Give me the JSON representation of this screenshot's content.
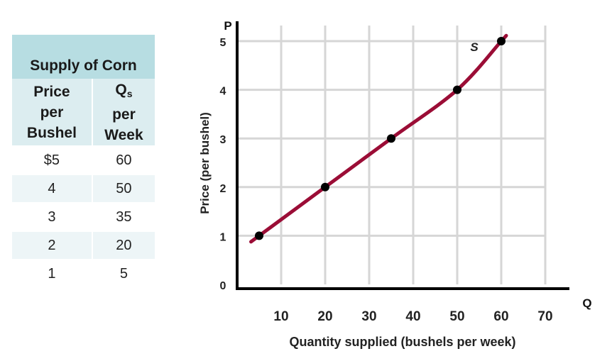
{
  "table": {
    "title": "Supply of Corn",
    "col1_header": [
      "Price",
      "per",
      "Bushel"
    ],
    "col2_header_main": "Q",
    "col2_header_sub": "s",
    "col2_header_rest": [
      "per",
      "Week"
    ],
    "rows": [
      {
        "price": "$5",
        "qty": "60"
      },
      {
        "price": "4",
        "qty": "50"
      },
      {
        "price": "3",
        "qty": "35"
      },
      {
        "price": "2",
        "qty": "20"
      },
      {
        "price": "1",
        "qty": "5"
      }
    ]
  },
  "chart_data": {
    "type": "line",
    "title": "",
    "xlabel": "Quantity supplied (bushels per week)",
    "ylabel": "Price (per bushel)",
    "x_axis_letter": "Q",
    "y_axis_letter": "P",
    "xlim": [
      0,
      70
    ],
    "ylim": [
      0,
      5
    ],
    "x_ticks": [
      10,
      20,
      30,
      40,
      50,
      60,
      70
    ],
    "y_ticks": [
      0,
      1,
      2,
      3,
      4,
      5
    ],
    "grid": true,
    "series": [
      {
        "name": "S",
        "x": [
          5,
          20,
          35,
          50,
          60
        ],
        "y": [
          1,
          2,
          3,
          4,
          5
        ]
      }
    ],
    "curve_color": "#9b0d36",
    "point_color": "#000000",
    "grid_color": "#d6d6d6"
  }
}
